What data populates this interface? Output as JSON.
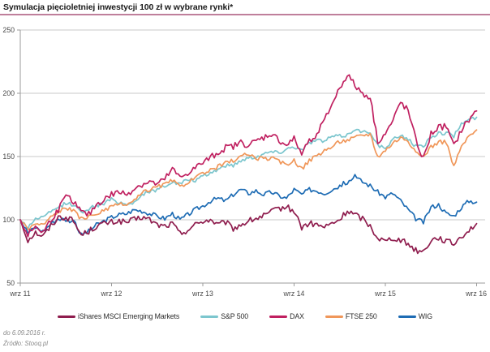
{
  "title": "Symulacja pięcioletniej inwestycji 100 zł w wybrane rynki*",
  "accent_underline_color": "#bf7f9b",
  "footnotes": {
    "line1": "do 6.09.2016 r.",
    "line2": "Źródło: Stooq.pl"
  },
  "chart_data": {
    "type": "line",
    "title": "Symulacja pięcioletniej inwestycji 100 zł w wybrane rynki*",
    "xlabel": "",
    "ylabel": "",
    "x_unit": "monthly samples, Sep 2011 - Sep 2016",
    "x_tick_labels": [
      "wrz 11",
      "wrz 12",
      "wrz 13",
      "wrz 14",
      "wrz 15",
      "wrz 16"
    ],
    "x_tick_months": [
      0,
      12,
      24,
      36,
      48,
      60
    ],
    "ylim": [
      50,
      250
    ],
    "y_ticks": [
      50,
      100,
      150,
      200,
      250
    ],
    "grid": "horizontal",
    "legend_position": "bottom",
    "start_value": 100,
    "series": [
      {
        "name": "iShares MSCI Emerging Markets",
        "color": "#8f1d4e",
        "values": [
          100,
          84,
          90,
          87,
          95,
          102,
          102,
          99,
          88,
          91,
          95,
          97,
          98,
          99,
          98,
          100,
          102,
          100,
          96,
          95,
          97,
          89,
          92,
          96,
          99,
          100,
          96,
          98,
          93,
          96,
          99,
          101,
          103,
          106,
          109,
          110,
          107,
          94,
          97,
          96,
          94,
          97,
          100,
          107,
          104,
          101,
          95,
          86,
          83,
          86,
          84,
          81,
          76,
          75,
          84,
          86,
          83,
          81,
          87,
          92,
          97
        ]
      },
      {
        "name": "S&P 500",
        "color": "#7cc6ce",
        "values": [
          100,
          94,
          101,
          102,
          106,
          110,
          113,
          112,
          106,
          109,
          111,
          113,
          116,
          114,
          112,
          114,
          120,
          122,
          124,
          127,
          130,
          128,
          132,
          131,
          134,
          137,
          140,
          143,
          143,
          147,
          149,
          150,
          152,
          154,
          153,
          156,
          158,
          155,
          161,
          163,
          162,
          166,
          166,
          167,
          172,
          169,
          170,
          159,
          156,
          163,
          167,
          164,
          158,
          158,
          166,
          168,
          169,
          166,
          176,
          179,
          181
        ]
      },
      {
        "name": "DAX",
        "color": "#c02060",
        "values": [
          100,
          88,
          95,
          90,
          100,
          108,
          118,
          115,
          106,
          104,
          112,
          116,
          120,
          122,
          120,
          125,
          128,
          130,
          128,
          132,
          140,
          133,
          137,
          141,
          145,
          149,
          153,
          157,
          158,
          161,
          159,
          162,
          165,
          168,
          163,
          159,
          164,
          152,
          163,
          168,
          178,
          192,
          204,
          215,
          206,
          200,
          197,
          162,
          168,
          178,
          193,
          186,
          163,
          148,
          168,
          173,
          174,
          158,
          171,
          179,
          186
        ]
      },
      {
        "name": "FTSE 250",
        "color": "#f0975a",
        "values": [
          100,
          93,
          97,
          96,
          102,
          107,
          109,
          107,
          101,
          102,
          105,
          107,
          110,
          112,
          112,
          115,
          121,
          124,
          126,
          128,
          131,
          126,
          130,
          133,
          136,
          139,
          142,
          145,
          147,
          150,
          152,
          149,
          148,
          149,
          146,
          144,
          147,
          140,
          147,
          151,
          154,
          158,
          162,
          163,
          165,
          167,
          168,
          150,
          155,
          161,
          165,
          163,
          152,
          150,
          158,
          161,
          162,
          142,
          158,
          166,
          171
        ]
      },
      {
        "name": "WIG",
        "color": "#1e6cb4",
        "values": [
          100,
          90,
          94,
          91,
          97,
          101,
          100,
          99,
          88,
          91,
          96,
          99,
          102,
          104,
          105,
          108,
          107,
          105,
          103,
          101,
          105,
          100,
          104,
          108,
          111,
          115,
          117,
          115,
          120,
          124,
          121,
          123,
          120,
          122,
          119,
          117,
          124,
          120,
          124,
          123,
          121,
          124,
          127,
          130,
          134,
          130,
          127,
          122,
          118,
          121,
          115,
          108,
          101,
          98,
          110,
          112,
          105,
          103,
          110,
          115,
          114
        ]
      }
    ]
  }
}
